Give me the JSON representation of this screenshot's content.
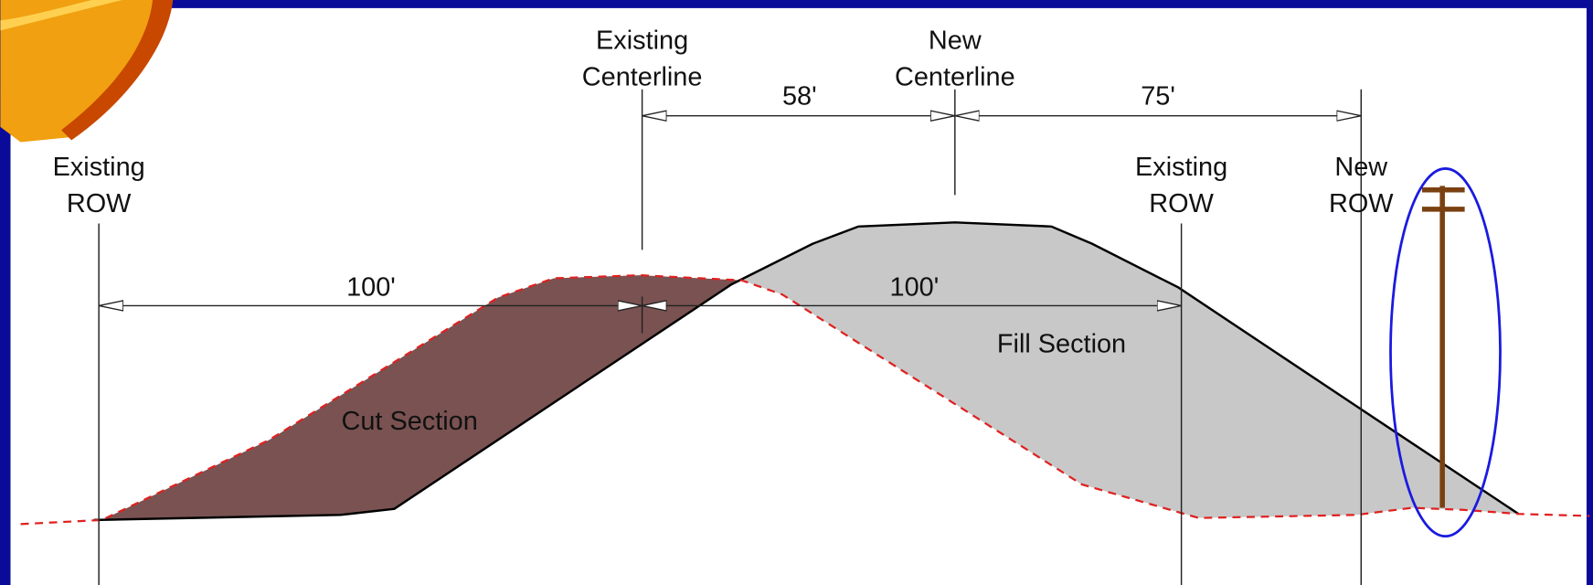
{
  "labels": {
    "existing_row_left": [
      "Existing",
      "ROW"
    ],
    "existing_centerline": [
      "Existing",
      "Centerline"
    ],
    "new_centerline": [
      "New",
      "Centerline"
    ],
    "existing_row_right": [
      "Existing",
      "ROW"
    ],
    "new_row": [
      "New",
      "ROW"
    ],
    "dim_centerline_shift": "58'",
    "dim_new_row": "75'",
    "dim_left": "100'",
    "dim_right": "100'",
    "cut_section": "Cut Section",
    "fill_section": "Fill Section"
  }
}
